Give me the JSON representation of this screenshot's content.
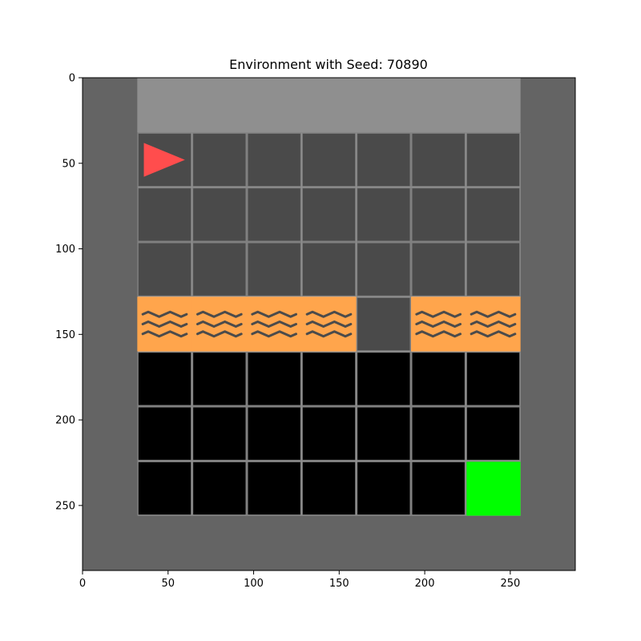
{
  "figure": {
    "title": "Environment with Seed: 70890"
  },
  "axes": {
    "x_ticks": [
      0,
      50,
      100,
      150,
      200,
      250
    ],
    "y_ticks": [
      0,
      50,
      100,
      150,
      200,
      250
    ],
    "x_range": [
      0,
      288
    ],
    "y_range": [
      288,
      0
    ]
  },
  "environment": {
    "grid_cols": 9,
    "grid_rows": 9,
    "cell_size_units": 32,
    "tile_types": [
      "wall",
      "floor",
      "lava",
      "unseen",
      "goal"
    ],
    "colors": {
      "wall": "#646464",
      "wall_highlighted": "#8f8f8f",
      "floor": "#4a4a4a",
      "grid_line": "#808080",
      "lava": "#ffa54c",
      "lava_wave": "#4b4b4b",
      "unseen": "#000000",
      "goal": "#00ff00",
      "agent": "#ff4d4d"
    },
    "rows": [
      [
        "wall",
        "wall",
        "wall",
        "wall",
        "wall",
        "wall",
        "wall",
        "wall",
        "wall"
      ],
      [
        "wall",
        "floor",
        "floor",
        "floor",
        "floor",
        "floor",
        "floor",
        "floor",
        "wall"
      ],
      [
        "wall",
        "floor",
        "floor",
        "floor",
        "floor",
        "floor",
        "floor",
        "floor",
        "wall"
      ],
      [
        "wall",
        "floor",
        "floor",
        "floor",
        "floor",
        "floor",
        "floor",
        "floor",
        "wall"
      ],
      [
        "wall",
        "lava",
        "lava",
        "lava",
        "lava",
        "floor",
        "lava",
        "lava",
        "wall"
      ],
      [
        "wall",
        "unseen",
        "unseen",
        "unseen",
        "unseen",
        "unseen",
        "unseen",
        "unseen",
        "wall"
      ],
      [
        "wall",
        "unseen",
        "unseen",
        "unseen",
        "unseen",
        "unseen",
        "unseen",
        "unseen",
        "wall"
      ],
      [
        "wall",
        "unseen",
        "unseen",
        "unseen",
        "unseen",
        "unseen",
        "unseen",
        "goal",
        "wall"
      ],
      [
        "wall",
        "wall",
        "wall",
        "wall",
        "wall",
        "wall",
        "wall",
        "wall",
        "wall"
      ]
    ],
    "view_highlight": {
      "row": 0,
      "col_start": 1,
      "col_end": 7
    },
    "agent": {
      "row": 1,
      "col": 1,
      "direction": "right"
    }
  }
}
